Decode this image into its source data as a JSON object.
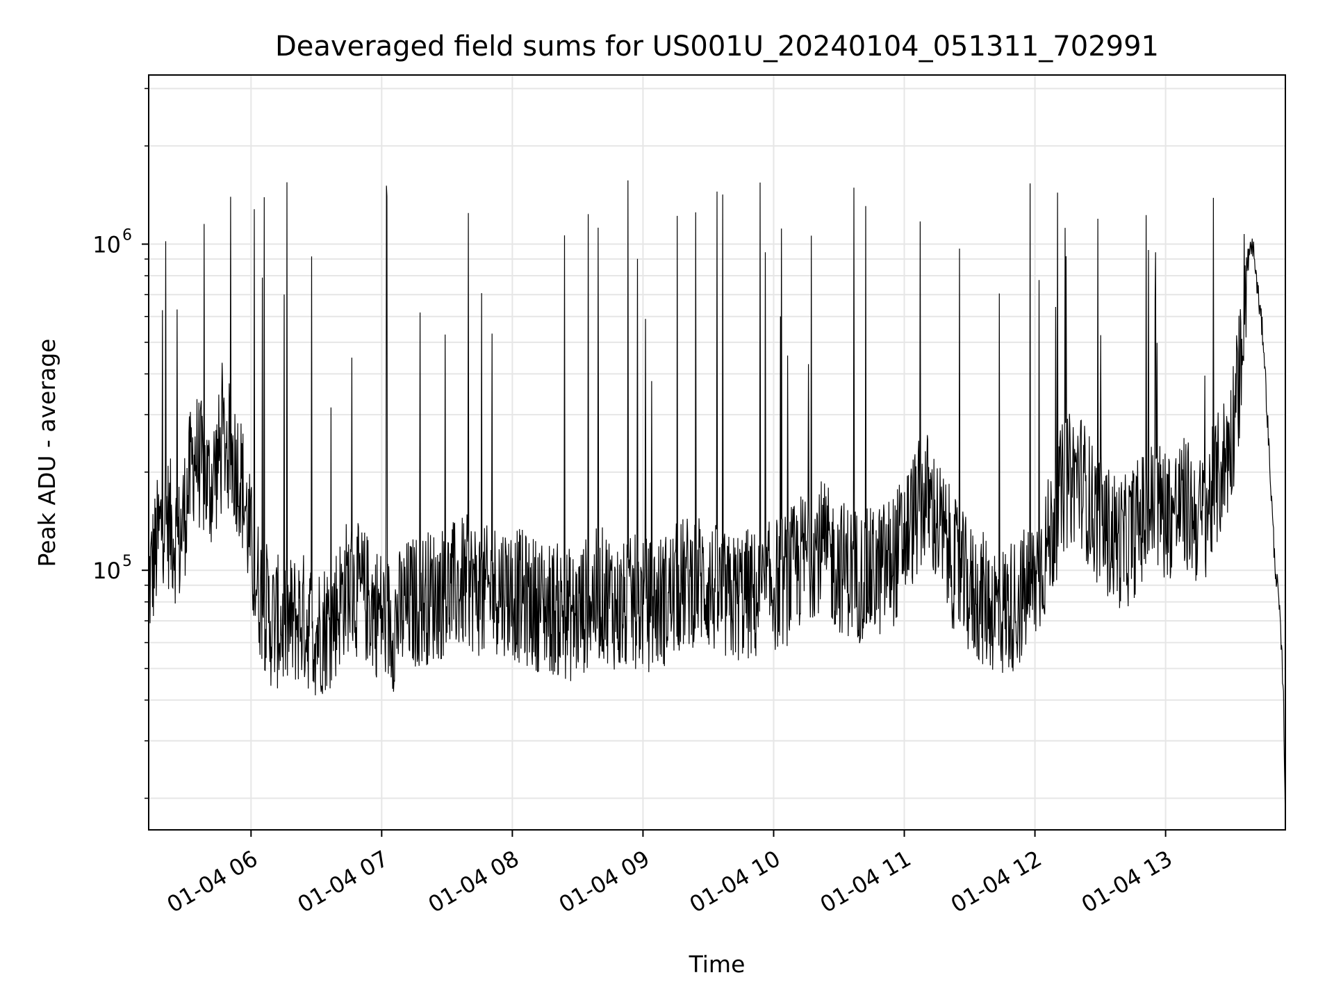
{
  "chart_data": {
    "type": "line",
    "title": "Deaveraged field sums for US001U_20240104_051311_702991",
    "xlabel": "Time",
    "ylabel": "Peak ADU - average",
    "y_scale": "log",
    "grid": true,
    "line_color": "#000000",
    "grid_color": "#e6e6e6",
    "xlim": [
      "2024-01-04 05:13",
      "2024-01-04 13:55"
    ],
    "ylim": [
      16000,
      3300000
    ],
    "x_ticks": [
      {
        "value": "2024-01-04 06:00",
        "label": "01-04 06"
      },
      {
        "value": "2024-01-04 07:00",
        "label": "01-04 07"
      },
      {
        "value": "2024-01-04 08:00",
        "label": "01-04 08"
      },
      {
        "value": "2024-01-04 09:00",
        "label": "01-04 09"
      },
      {
        "value": "2024-01-04 10:00",
        "label": "01-04 10"
      },
      {
        "value": "2024-01-04 11:00",
        "label": "01-04 11"
      },
      {
        "value": "2024-01-04 12:00",
        "label": "01-04 12"
      },
      {
        "value": "2024-01-04 13:00",
        "label": "01-04 13"
      }
    ],
    "y_ticks": [
      {
        "value": 100000,
        "base": "10",
        "exp": "5"
      },
      {
        "value": 1000000,
        "base": "10",
        "exp": "6"
      }
    ],
    "series": [
      {
        "x": [
          "2024-01-04 05:13",
          "2024-01-04 05:20",
          "2024-01-04 05:27",
          "2024-01-04 05:34",
          "2024-01-04 05:41",
          "2024-01-04 05:48",
          "2024-01-04 05:55",
          "2024-01-04 06:02",
          "2024-01-04 06:09",
          "2024-01-04 06:16",
          "2024-01-04 06:23",
          "2024-01-04 06:30",
          "2024-01-04 06:37",
          "2024-01-04 06:44",
          "2024-01-04 06:51",
          "2024-01-04 06:58",
          "2024-01-04 07:05",
          "2024-01-04 07:12",
          "2024-01-04 07:19",
          "2024-01-04 07:26",
          "2024-01-04 07:33",
          "2024-01-04 07:40",
          "2024-01-04 07:47",
          "2024-01-04 07:54",
          "2024-01-04 08:01",
          "2024-01-04 08:08",
          "2024-01-04 08:15",
          "2024-01-04 08:22",
          "2024-01-04 08:29",
          "2024-01-04 08:36",
          "2024-01-04 08:43",
          "2024-01-04 08:50",
          "2024-01-04 08:57",
          "2024-01-04 09:04",
          "2024-01-04 09:11",
          "2024-01-04 09:18",
          "2024-01-04 09:25",
          "2024-01-04 09:32",
          "2024-01-04 09:39",
          "2024-01-04 09:46",
          "2024-01-04 09:53",
          "2024-01-04 10:00",
          "2024-01-04 10:07",
          "2024-01-04 10:14",
          "2024-01-04 10:21",
          "2024-01-04 10:28",
          "2024-01-04 10:35",
          "2024-01-04 10:42",
          "2024-01-04 10:49",
          "2024-01-04 10:56",
          "2024-01-04 11:03",
          "2024-01-04 11:10",
          "2024-01-04 11:17",
          "2024-01-04 11:24",
          "2024-01-04 11:31",
          "2024-01-04 11:38",
          "2024-01-04 11:45",
          "2024-01-04 11:52",
          "2024-01-04 11:59",
          "2024-01-04 12:06",
          "2024-01-04 12:13",
          "2024-01-04 12:20",
          "2024-01-04 12:27",
          "2024-01-04 12:34",
          "2024-01-04 12:41",
          "2024-01-04 12:48",
          "2024-01-04 12:55",
          "2024-01-04 13:02",
          "2024-01-04 13:09",
          "2024-01-04 13:16",
          "2024-01-04 13:23",
          "2024-01-04 13:30",
          "2024-01-04 13:34",
          "2024-01-04 13:36",
          "2024-01-04 13:38",
          "2024-01-04 13:40",
          "2024-01-04 13:42",
          "2024-01-04 13:45",
          "2024-01-04 13:48",
          "2024-01-04 13:50",
          "2024-01-04 13:52",
          "2024-01-04 13:54",
          "2024-01-04 13:55"
        ],
        "y": [
          90000,
          150000,
          120000,
          230000,
          180000,
          250000,
          200000,
          95000,
          70000,
          68000,
          72000,
          65000,
          70000,
          90000,
          85000,
          75000,
          68000,
          78000,
          82000,
          85000,
          88000,
          92000,
          84000,
          90000,
          85000,
          80000,
          78000,
          75000,
          72000,
          82000,
          85000,
          75000,
          80000,
          78000,
          82000,
          90000,
          95000,
          88000,
          80000,
          85000,
          82000,
          90000,
          95000,
          110000,
          120000,
          105000,
          100000,
          95000,
          100000,
          110000,
          140000,
          170000,
          130000,
          100000,
          85000,
          80000,
          75000,
          80000,
          90000,
          120000,
          180000,
          200000,
          150000,
          130000,
          120000,
          140000,
          160000,
          150000,
          160000,
          140000,
          180000,
          250000,
          400000,
          700000,
          900000,
          1000000,
          750000,
          500000,
          200000,
          110000,
          80000,
          45000,
          18000
        ]
      }
    ]
  }
}
